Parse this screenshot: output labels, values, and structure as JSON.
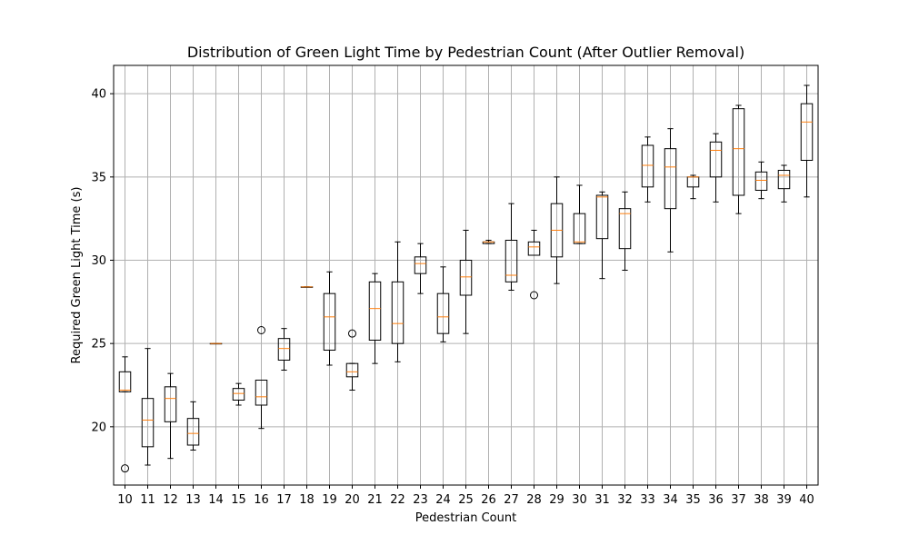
{
  "chart_data": {
    "type": "box",
    "title": "Distribution of Green Light Time by Pedestrian Count (After Outlier Removal)",
    "xlabel": "Pedestrian Count",
    "ylabel": "Required Green Light Time (s)",
    "ylim": [
      16.5,
      41.7
    ],
    "yticks": [
      20,
      25,
      30,
      35,
      40
    ],
    "grid": true,
    "colors": {
      "box": "#000000",
      "median": "#ff7f0e",
      "grid": "#b0b0b0"
    },
    "boxes": [
      {
        "x": "10",
        "whisker_low": 22.1,
        "q1": 22.1,
        "median": 22.2,
        "q3": 23.3,
        "whisker_high": 24.2,
        "fliers": [
          17.5
        ]
      },
      {
        "x": "11",
        "whisker_low": 17.7,
        "q1": 18.8,
        "median": 20.4,
        "q3": 21.7,
        "whisker_high": 24.7,
        "fliers": []
      },
      {
        "x": "12",
        "whisker_low": 18.1,
        "q1": 20.3,
        "median": 21.7,
        "q3": 22.4,
        "whisker_high": 23.2,
        "fliers": []
      },
      {
        "x": "13",
        "whisker_low": 18.6,
        "q1": 18.9,
        "median": 19.6,
        "q3": 20.5,
        "whisker_high": 21.5,
        "fliers": []
      },
      {
        "x": "14",
        "whisker_low": 25.0,
        "q1": 25.0,
        "median": 25.0,
        "q3": 25.0,
        "whisker_high": 25.0,
        "fliers": []
      },
      {
        "x": "15",
        "whisker_low": 21.3,
        "q1": 21.6,
        "median": 22.0,
        "q3": 22.3,
        "whisker_high": 22.6,
        "fliers": []
      },
      {
        "x": "16",
        "whisker_low": 19.9,
        "q1": 21.3,
        "median": 21.8,
        "q3": 22.8,
        "whisker_high": 22.8,
        "fliers": [
          25.8
        ]
      },
      {
        "x": "17",
        "whisker_low": 23.4,
        "q1": 24.0,
        "median": 24.7,
        "q3": 25.3,
        "whisker_high": 25.9,
        "fliers": []
      },
      {
        "x": "18",
        "whisker_low": 28.4,
        "q1": 28.4,
        "median": 28.4,
        "q3": 28.4,
        "whisker_high": 28.4,
        "fliers": []
      },
      {
        "x": "19",
        "whisker_low": 23.7,
        "q1": 24.6,
        "median": 26.6,
        "q3": 28.0,
        "whisker_high": 29.3,
        "fliers": []
      },
      {
        "x": "20",
        "whisker_low": 22.2,
        "q1": 23.0,
        "median": 23.3,
        "q3": 23.8,
        "whisker_high": 23.8,
        "fliers": [
          25.6
        ]
      },
      {
        "x": "21",
        "whisker_low": 23.8,
        "q1": 25.2,
        "median": 27.1,
        "q3": 28.7,
        "whisker_high": 29.2,
        "fliers": []
      },
      {
        "x": "22",
        "whisker_low": 23.9,
        "q1": 25.0,
        "median": 26.2,
        "q3": 28.7,
        "whisker_high": 31.1,
        "fliers": []
      },
      {
        "x": "23",
        "whisker_low": 28.0,
        "q1": 29.2,
        "median": 29.8,
        "q3": 30.2,
        "whisker_high": 31.0,
        "fliers": []
      },
      {
        "x": "24",
        "whisker_low": 25.1,
        "q1": 25.6,
        "median": 26.6,
        "q3": 28.0,
        "whisker_high": 29.6,
        "fliers": []
      },
      {
        "x": "25",
        "whisker_low": 25.6,
        "q1": 27.9,
        "median": 29.0,
        "q3": 30.0,
        "whisker_high": 31.8,
        "fliers": []
      },
      {
        "x": "26",
        "whisker_low": 31.0,
        "q1": 31.0,
        "median": 31.1,
        "q3": 31.1,
        "whisker_high": 31.2,
        "fliers": []
      },
      {
        "x": "27",
        "whisker_low": 28.2,
        "q1": 28.7,
        "median": 29.1,
        "q3": 31.2,
        "whisker_high": 33.4,
        "fliers": []
      },
      {
        "x": "28",
        "whisker_low": 30.3,
        "q1": 30.3,
        "median": 30.8,
        "q3": 31.1,
        "whisker_high": 31.8,
        "fliers": [
          27.9
        ]
      },
      {
        "x": "29",
        "whisker_low": 28.6,
        "q1": 30.2,
        "median": 31.8,
        "q3": 33.4,
        "whisker_high": 35.0,
        "fliers": []
      },
      {
        "x": "30",
        "whisker_low": 31.0,
        "q1": 31.0,
        "median": 31.1,
        "q3": 32.8,
        "whisker_high": 34.5,
        "fliers": []
      },
      {
        "x": "31",
        "whisker_low": 28.9,
        "q1": 31.3,
        "median": 33.8,
        "q3": 33.9,
        "whisker_high": 34.1,
        "fliers": []
      },
      {
        "x": "32",
        "whisker_low": 29.4,
        "q1": 30.7,
        "median": 32.8,
        "q3": 33.1,
        "whisker_high": 34.1,
        "fliers": []
      },
      {
        "x": "33",
        "whisker_low": 33.5,
        "q1": 34.4,
        "median": 35.7,
        "q3": 36.9,
        "whisker_high": 37.4,
        "fliers": []
      },
      {
        "x": "34",
        "whisker_low": 30.5,
        "q1": 33.1,
        "median": 35.6,
        "q3": 36.7,
        "whisker_high": 37.9,
        "fliers": []
      },
      {
        "x": "35",
        "whisker_low": 33.7,
        "q1": 34.4,
        "median": 35.0,
        "q3": 35.0,
        "whisker_high": 35.1,
        "fliers": []
      },
      {
        "x": "36",
        "whisker_low": 33.5,
        "q1": 35.0,
        "median": 36.6,
        "q3": 37.1,
        "whisker_high": 37.6,
        "fliers": []
      },
      {
        "x": "37",
        "whisker_low": 32.8,
        "q1": 33.9,
        "median": 36.7,
        "q3": 39.1,
        "whisker_high": 39.3,
        "fliers": []
      },
      {
        "x": "38",
        "whisker_low": 33.7,
        "q1": 34.2,
        "median": 34.8,
        "q3": 35.3,
        "whisker_high": 35.9,
        "fliers": []
      },
      {
        "x": "39",
        "whisker_low": 33.5,
        "q1": 34.3,
        "median": 35.1,
        "q3": 35.4,
        "whisker_high": 35.7,
        "fliers": []
      },
      {
        "x": "40",
        "whisker_low": 33.8,
        "q1": 36.0,
        "median": 38.3,
        "q3": 39.4,
        "whisker_high": 40.5,
        "fliers": []
      }
    ]
  }
}
